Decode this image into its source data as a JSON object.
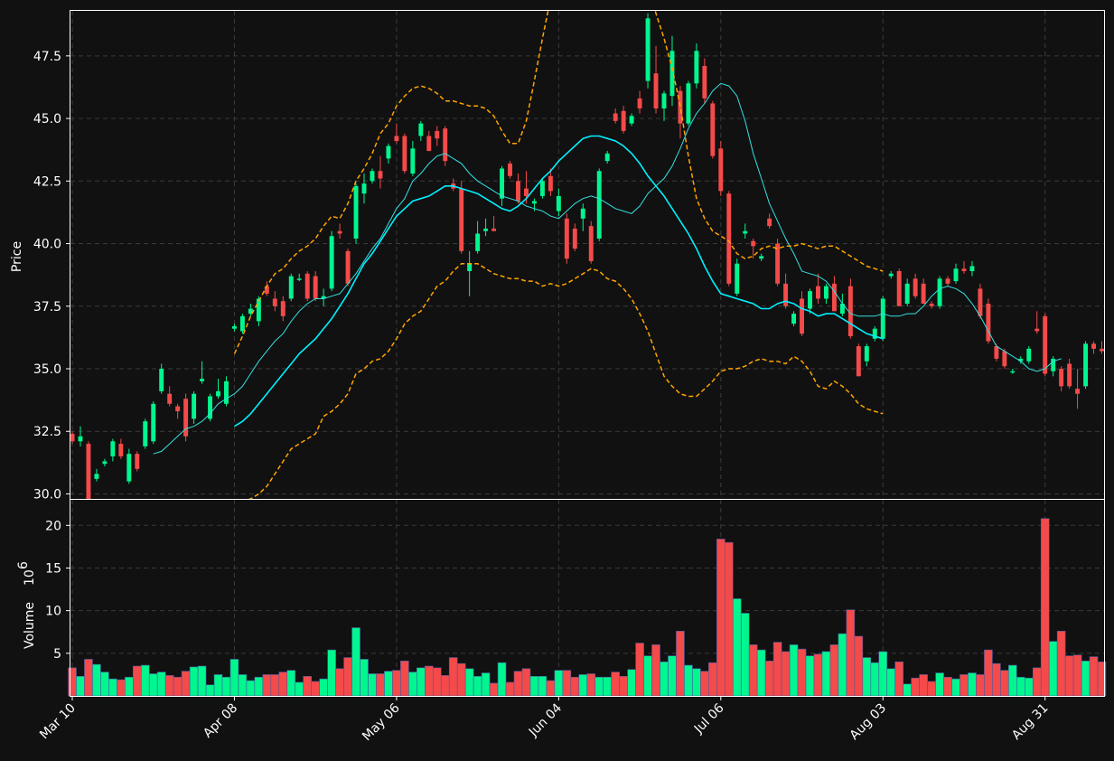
{
  "colors": {
    "background": "#111111",
    "grid": "#3a3a3a",
    "axes": "#ffffff",
    "up": "#00f68f",
    "down": "#f44a4a",
    "sma_fast": "#35e0e0",
    "sma_slow": "#00f0ff",
    "band": "#ffa500"
  },
  "labels": {
    "price_axis": "Price",
    "volume_axis": "Volume",
    "volume_exponent": "10^6"
  },
  "chart_data": {
    "type": "candlestick",
    "grid": true,
    "price_axis": {
      "label": "Price",
      "ylim": [
        29.8,
        49.3
      ],
      "ticks": [
        "30.0",
        "32.5",
        "35.0",
        "37.5",
        "40.0",
        "42.5",
        "45.0",
        "47.5"
      ],
      "tick_values": [
        30.0,
        32.5,
        35.0,
        37.5,
        40.0,
        42.5,
        45.0,
        47.5
      ]
    },
    "volume_axis": {
      "label": "Volume",
      "scale": "10^6",
      "ylim": [
        0,
        23
      ],
      "ticks": [
        "5",
        "10",
        "15",
        "20"
      ],
      "tick_values": [
        5,
        10,
        15,
        20
      ]
    },
    "x_ticks": [
      {
        "label": "Mar 10",
        "index": 0
      },
      {
        "label": "Apr 08",
        "index": 20
      },
      {
        "label": "May 06",
        "index": 40
      },
      {
        "label": "Jun 04",
        "index": 60
      },
      {
        "label": "Jul 06",
        "index": 80
      },
      {
        "label": "Aug 03",
        "index": 100
      },
      {
        "label": "Aug 31",
        "index": 120
      }
    ],
    "candles": [
      [
        32.4,
        32.5,
        32.0,
        32.1,
        3.3
      ],
      [
        32.1,
        32.7,
        31.9,
        32.3,
        2.3
      ],
      [
        32.0,
        32.1,
        29.8,
        29.8,
        4.3
      ],
      [
        30.6,
        31.0,
        30.5,
        30.8,
        3.7
      ],
      [
        31.2,
        31.4,
        31.1,
        31.3,
        2.8
      ],
      [
        31.5,
        32.2,
        31.3,
        32.1,
        2.0
      ],
      [
        32.0,
        32.2,
        31.4,
        31.5,
        1.9
      ],
      [
        30.5,
        31.8,
        30.4,
        31.6,
        2.2
      ],
      [
        31.6,
        31.7,
        30.9,
        31.0,
        3.5
      ],
      [
        31.9,
        33.0,
        31.8,
        32.9,
        3.6
      ],
      [
        32.1,
        33.7,
        32.0,
        33.6,
        2.6
      ],
      [
        34.1,
        35.2,
        34.0,
        35.0,
        2.8
      ],
      [
        34.0,
        34.3,
        33.5,
        33.6,
        2.4
      ],
      [
        33.5,
        33.6,
        33.0,
        33.3,
        2.2
      ],
      [
        33.8,
        34.0,
        32.1,
        32.3,
        2.9
      ],
      [
        33.0,
        34.1,
        32.8,
        34.0,
        3.4
      ],
      [
        34.5,
        35.3,
        34.4,
        34.6,
        3.5
      ],
      [
        33.0,
        34.0,
        32.9,
        33.9,
        1.3
      ],
      [
        33.9,
        34.6,
        33.8,
        34.1,
        2.5
      ],
      [
        33.6,
        34.7,
        33.5,
        34.5,
        2.2
      ],
      [
        36.6,
        36.8,
        36.5,
        36.7,
        4.3
      ],
      [
        36.5,
        37.2,
        36.4,
        37.1,
        2.5
      ],
      [
        37.2,
        37.6,
        37.1,
        37.4,
        1.8
      ],
      [
        36.9,
        37.9,
        36.7,
        37.8,
        2.2
      ],
      [
        38.3,
        38.5,
        37.9,
        38.0,
        2.5
      ],
      [
        37.8,
        38.1,
        37.3,
        37.5,
        2.5
      ],
      [
        37.7,
        37.9,
        36.9,
        37.1,
        2.8
      ],
      [
        37.8,
        38.8,
        37.7,
        38.7,
        3.0
      ],
      [
        38.6,
        38.8,
        38.5,
        38.6,
        1.6
      ],
      [
        38.8,
        38.9,
        37.7,
        37.8,
        2.3
      ],
      [
        38.7,
        38.9,
        37.7,
        37.8,
        1.7
      ],
      [
        37.8,
        38.2,
        37.5,
        37.9,
        2.0
      ],
      [
        38.2,
        40.5,
        38.1,
        40.3,
        5.4
      ],
      [
        40.5,
        40.8,
        40.2,
        40.4,
        3.2
      ],
      [
        39.7,
        39.8,
        38.3,
        38.4,
        4.5
      ],
      [
        40.2,
        42.4,
        40.0,
        42.3,
        8.0
      ],
      [
        42.0,
        42.8,
        41.6,
        42.4,
        4.3
      ],
      [
        42.5,
        43.0,
        42.4,
        42.9,
        2.6
      ],
      [
        42.9,
        43.5,
        42.2,
        42.6,
        2.6
      ],
      [
        43.4,
        44.0,
        43.2,
        43.9,
        2.9
      ],
      [
        44.3,
        44.8,
        44.0,
        44.1,
        3.0
      ],
      [
        44.3,
        44.4,
        42.8,
        42.9,
        4.1
      ],
      [
        42.8,
        44.1,
        42.7,
        43.8,
        2.8
      ],
      [
        44.3,
        44.9,
        44.1,
        44.8,
        3.3
      ],
      [
        44.3,
        44.5,
        43.7,
        43.7,
        3.5
      ],
      [
        44.5,
        44.7,
        43.9,
        44.2,
        3.3
      ],
      [
        44.6,
        44.7,
        43.1,
        43.3,
        2.4
      ],
      [
        42.4,
        42.6,
        42.1,
        42.2,
        4.5
      ],
      [
        42.2,
        42.5,
        39.6,
        39.7,
        3.8
      ],
      [
        38.9,
        39.7,
        37.9,
        39.2,
        3.2
      ],
      [
        39.7,
        40.9,
        39.6,
        40.4,
        2.3
      ],
      [
        40.5,
        41.0,
        40.3,
        40.6,
        2.7
      ],
      [
        40.6,
        41.1,
        40.5,
        40.5,
        1.5
      ],
      [
        41.8,
        43.1,
        41.5,
        43.0,
        3.9
      ],
      [
        43.2,
        43.3,
        42.6,
        42.7,
        1.6
      ],
      [
        42.5,
        42.8,
        41.6,
        41.7,
        2.9
      ],
      [
        42.2,
        42.9,
        41.6,
        41.9,
        3.2
      ],
      [
        41.6,
        41.8,
        41.3,
        41.7,
        2.3
      ],
      [
        41.9,
        42.6,
        41.8,
        42.5,
        2.3
      ],
      [
        42.7,
        43.0,
        41.9,
        42.1,
        1.8
      ],
      [
        41.3,
        42.2,
        41.1,
        41.9,
        3.0
      ],
      [
        41.0,
        41.2,
        39.2,
        39.4,
        3.0
      ],
      [
        40.6,
        40.8,
        39.7,
        39.8,
        2.2
      ],
      [
        41.0,
        41.6,
        40.5,
        41.4,
        2.5
      ],
      [
        40.7,
        40.9,
        39.2,
        39.3,
        2.6
      ],
      [
        40.2,
        43.0,
        40.1,
        42.9,
        2.2
      ],
      [
        43.3,
        43.7,
        43.2,
        43.6,
        2.2
      ],
      [
        45.2,
        45.4,
        44.8,
        44.9,
        2.8
      ],
      [
        45.3,
        45.5,
        44.4,
        44.5,
        2.3
      ],
      [
        44.8,
        45.2,
        44.7,
        45.1,
        3.1
      ],
      [
        45.8,
        46.1,
        45.2,
        45.4,
        6.2
      ],
      [
        46.5,
        49.2,
        46.2,
        49.0,
        4.7
      ],
      [
        46.8,
        47.9,
        45.2,
        45.4,
        6.0
      ],
      [
        45.4,
        46.1,
        44.9,
        46.0,
        4.0
      ],
      [
        45.9,
        48.3,
        45.5,
        47.7,
        4.7
      ],
      [
        46.1,
        46.3,
        44.2,
        44.8,
        7.6
      ],
      [
        44.8,
        46.5,
        44.7,
        46.4,
        3.6
      ],
      [
        46.4,
        48.0,
        46.2,
        47.7,
        3.2
      ],
      [
        47.1,
        47.4,
        45.6,
        45.8,
        2.9
      ],
      [
        45.6,
        45.7,
        43.4,
        43.5,
        3.9
      ],
      [
        43.8,
        44.1,
        41.9,
        42.1,
        18.4
      ],
      [
        42.0,
        42.1,
        38.3,
        38.4,
        18.0
      ],
      [
        38.0,
        39.4,
        37.9,
        39.2,
        11.4
      ],
      [
        40.4,
        40.8,
        40.2,
        40.5,
        9.7
      ],
      [
        40.1,
        40.2,
        39.4,
        39.9,
        6.0
      ],
      [
        39.4,
        39.6,
        39.3,
        39.5,
        5.4
      ],
      [
        41.0,
        41.2,
        40.6,
        40.7,
        4.1
      ],
      [
        40.0,
        40.2,
        38.3,
        38.4,
        6.3
      ],
      [
        38.4,
        38.8,
        37.4,
        37.5,
        5.2
      ],
      [
        36.8,
        37.3,
        36.7,
        37.2,
        6.0
      ],
      [
        37.8,
        38.1,
        36.3,
        36.4,
        5.5
      ],
      [
        37.4,
        38.2,
        37.2,
        38.1,
        4.7
      ],
      [
        38.3,
        38.8,
        37.6,
        37.8,
        4.9
      ],
      [
        37.8,
        38.4,
        37.6,
        38.3,
        5.2
      ],
      [
        38.4,
        38.7,
        37.3,
        37.3,
        6.0
      ],
      [
        37.2,
        38.0,
        37.1,
        37.6,
        7.3
      ],
      [
        38.3,
        38.6,
        36.2,
        36.3,
        10.1
      ],
      [
        35.9,
        36.0,
        34.7,
        34.7,
        7.0
      ],
      [
        35.3,
        36.0,
        35.1,
        35.9,
        4.5
      ],
      [
        36.2,
        36.7,
        36.1,
        36.6,
        3.9
      ],
      [
        36.2,
        37.9,
        36.1,
        37.8,
        5.2
      ],
      [
        38.7,
        38.9,
        38.6,
        38.8,
        3.2
      ],
      [
        38.9,
        39.0,
        37.5,
        37.5,
        4.0
      ],
      [
        37.6,
        38.6,
        37.5,
        38.4,
        1.4
      ],
      [
        38.6,
        38.8,
        37.8,
        37.9,
        2.1
      ],
      [
        38.4,
        38.6,
        37.6,
        37.6,
        2.5
      ],
      [
        37.6,
        37.7,
        37.4,
        37.5,
        1.7
      ],
      [
        37.5,
        38.7,
        37.4,
        38.6,
        2.7
      ],
      [
        38.6,
        38.7,
        38.3,
        38.4,
        2.2
      ],
      [
        38.5,
        39.2,
        38.4,
        39.0,
        2.0
      ],
      [
        39.0,
        39.3,
        38.8,
        38.9,
        2.5
      ],
      [
        38.9,
        39.3,
        38.7,
        39.1,
        2.7
      ],
      [
        38.2,
        38.4,
        37.0,
        37.1,
        2.5
      ],
      [
        37.6,
        37.8,
        36.0,
        36.1,
        5.4
      ],
      [
        35.9,
        36.0,
        35.3,
        35.4,
        3.8
      ],
      [
        35.7,
        35.8,
        35.0,
        35.1,
        3.0
      ],
      [
        34.9,
        35.0,
        34.8,
        34.9,
        3.6
      ],
      [
        35.3,
        35.5,
        35.2,
        35.4,
        2.2
      ],
      [
        35.3,
        35.9,
        35.2,
        35.8,
        2.1
      ],
      [
        36.6,
        37.3,
        36.4,
        36.5,
        3.3
      ],
      [
        37.1,
        37.2,
        34.7,
        34.8,
        20.8
      ],
      [
        34.9,
        35.5,
        34.7,
        35.4,
        6.4
      ],
      [
        35.0,
        35.1,
        34.1,
        34.3,
        7.6
      ],
      [
        35.2,
        35.4,
        34.2,
        34.3,
        4.7
      ],
      [
        34.2,
        35.0,
        33.4,
        34.0,
        4.8
      ],
      [
        34.3,
        36.1,
        34.2,
        36.0,
        4.1
      ],
      [
        36.0,
        36.1,
        35.6,
        35.8,
        4.6
      ],
      [
        35.8,
        36.1,
        35.6,
        35.7,
        4.0
      ]
    ],
    "overlays": [
      {
        "role": "sma_fast",
        "start_index": 10,
        "values": [
          31.6,
          31.7,
          32.0,
          32.3,
          32.6,
          32.7,
          32.9,
          33.2,
          33.6,
          33.8,
          34.0,
          34.3,
          34.8,
          35.3,
          35.7,
          36.1,
          36.4,
          36.9,
          37.3,
          37.6,
          37.8,
          37.8,
          37.9,
          38.0,
          38.4,
          38.8,
          39.3,
          39.8,
          40.2,
          40.8,
          41.4,
          41.8,
          42.5,
          42.8,
          43.2,
          43.5,
          43.6,
          43.4,
          43.2,
          42.8,
          42.5,
          42.3,
          42.1,
          41.9,
          41.8,
          41.7,
          41.5,
          41.4,
          41.3,
          41.1,
          41.0,
          41.3,
          41.6,
          41.8,
          41.9,
          41.8,
          41.6,
          41.4,
          41.3,
          41.2,
          41.5,
          42.0,
          42.3,
          42.6,
          43.1,
          43.8,
          44.6,
          45.2,
          45.6,
          46.1,
          46.4,
          46.3,
          45.9,
          44.9,
          43.6,
          42.6,
          41.6,
          40.9,
          40.2,
          39.6,
          38.9,
          38.8,
          38.7,
          38.5,
          38.1,
          37.6,
          37.2,
          37.1,
          37.1,
          37.1,
          37.2,
          37.1,
          37.1,
          37.2,
          37.2,
          37.5,
          37.9,
          38.2,
          38.3,
          38.2,
          38.0,
          37.6,
          37.1,
          36.5,
          35.9,
          35.7,
          35.5,
          35.3,
          35.0,
          34.9,
          35.0,
          35.3,
          35.4
        ]
      },
      {
        "role": "sma_slow",
        "start_index": 20,
        "values": [
          32.7,
          32.9,
          33.2,
          33.6,
          34.0,
          34.4,
          34.8,
          35.2,
          35.6,
          35.9,
          36.2,
          36.6,
          37.0,
          37.5,
          38.0,
          38.6,
          39.2,
          39.6,
          40.1,
          40.6,
          41.1,
          41.4,
          41.7,
          41.8,
          41.9,
          42.1,
          42.3,
          42.3,
          42.2,
          42.1,
          42.0,
          41.8,
          41.6,
          41.4,
          41.3,
          41.5,
          41.8,
          42.2,
          42.6,
          42.9,
          43.3,
          43.6,
          43.9,
          44.2,
          44.3,
          44.3,
          44.2,
          44.1,
          43.9,
          43.6,
          43.2,
          42.7,
          42.3,
          41.9,
          41.4,
          40.9,
          40.4,
          39.8,
          39.1,
          38.5,
          38.0,
          37.9,
          37.8,
          37.7,
          37.6,
          37.4,
          37.4,
          37.6,
          37.7,
          37.6,
          37.4,
          37.3,
          37.1,
          37.2,
          37.2,
          37.0,
          36.8,
          36.6,
          36.4,
          36.3,
          36.2
        ]
      },
      {
        "role": "upper_band",
        "start_index": 20,
        "values": [
          35.6,
          36.3,
          37.1,
          37.7,
          38.3,
          38.8,
          39.0,
          39.4,
          39.7,
          39.9,
          40.2,
          40.7,
          41.1,
          41.0,
          41.6,
          42.5,
          43.0,
          43.6,
          44.4,
          44.8,
          45.5,
          45.9,
          46.2,
          46.3,
          46.2,
          46.0,
          45.7,
          45.7,
          45.6,
          45.5,
          45.5,
          45.4,
          45.1,
          44.5,
          44.0,
          44.0,
          44.9,
          46.5,
          48.2,
          49.8,
          52.0,
          54.5,
          57.0,
          59.5,
          61.0,
          61.2,
          60.5,
          58.5,
          56.5,
          54.5,
          52.5,
          50.5,
          49.2,
          48.2,
          47.0,
          45.5,
          43.5,
          41.8,
          41.0,
          40.5,
          40.3,
          40.1,
          39.6,
          39.4,
          39.5,
          39.8,
          39.9,
          39.8,
          39.9,
          39.9,
          40.0,
          39.9,
          39.8,
          39.9,
          39.9,
          39.7,
          39.5,
          39.3,
          39.1,
          39.0,
          38.9
        ]
      },
      {
        "role": "lower_band",
        "start_index": 20,
        "values": [
          29.6,
          29.7,
          29.8,
          30.0,
          30.3,
          30.8,
          31.3,
          31.8,
          32.0,
          32.2,
          32.4,
          33.1,
          33.3,
          33.6,
          34.0,
          34.8,
          35.0,
          35.3,
          35.4,
          35.7,
          36.2,
          36.8,
          37.1,
          37.3,
          37.8,
          38.3,
          38.5,
          38.9,
          39.2,
          39.2,
          39.2,
          39.0,
          38.8,
          38.7,
          38.6,
          38.6,
          38.5,
          38.5,
          38.3,
          38.4,
          38.3,
          38.4,
          38.6,
          38.8,
          39.0,
          38.9,
          38.6,
          38.5,
          38.2,
          37.8,
          37.2,
          36.5,
          35.6,
          34.7,
          34.3,
          34.0,
          33.9,
          33.9,
          34.2,
          34.5,
          34.9,
          35.0,
          35.0,
          35.1,
          35.3,
          35.4,
          35.3,
          35.3,
          35.2,
          35.5,
          35.3,
          34.9,
          34.3,
          34.2,
          34.5,
          34.3,
          34.0,
          33.6,
          33.4,
          33.3,
          33.2
        ]
      }
    ]
  }
}
